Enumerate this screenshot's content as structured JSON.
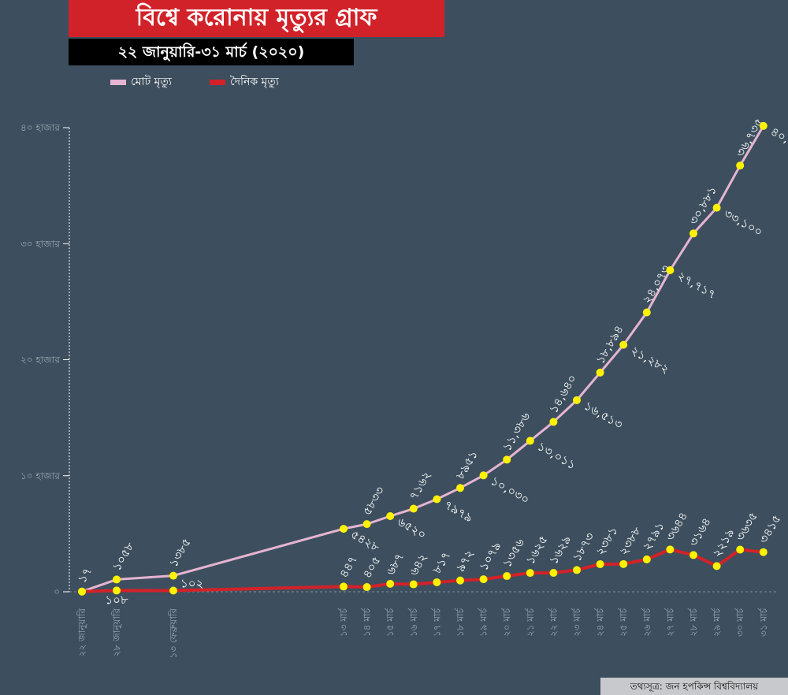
{
  "chart_data": {
    "type": "line",
    "title": "বিশ্বে করোনায় মৃত্যুর গ্রাফ",
    "subtitle": "২২ জানুয়ারি-৩১ মার্চ (২০২০)",
    "x": [
      "২২ জানুয়ারি",
      "২৮ জানুয়ারি",
      "১৩ ফেব্রুয়ারি",
      "১৩ মার্চ",
      "১৪ মার্চ",
      "১৫ মার্চ",
      "১৬ মার্চ",
      "১৭ মার্চ",
      "১৮ মার্চ",
      "১৯ মার্চ",
      "২০ মার্চ",
      "২১ মার্চ",
      "২২ মার্চ",
      "২৩ মার্চ",
      "২৪ মার্চ",
      "২৫ মার্চ",
      "২৬ মার্চ",
      "২৭ মার্চ",
      "২৮ মার্চ",
      "২৯ মার্চ",
      "৩০ মার্চ",
      "৩১ মার্চ"
    ],
    "series": [
      {
        "name": "মোট মৃত্যু",
        "color": "#e6b4d2",
        "values": [
          17,
          1058,
          1385,
          5428,
          5833,
          6520,
          7162,
          7979,
          8951,
          10030,
          11386,
          13011,
          14640,
          16513,
          18894,
          21282,
          24073,
          27717,
          30881,
          33100,
          36735,
          40150
        ],
        "labels": [
          "১৭",
          "১০৫৮",
          "১৩৮৫",
          "৫৪২৮",
          "৫৮৩৩",
          "৬৫২০",
          "৭১৬২",
          "৭৯৭৯",
          "৮৯৫১",
          "১০,০৩০",
          "১১,৩৮৬",
          "১৩,০১১",
          "১৪,৬৪০",
          "১৬,৫১৩",
          "১৮,৮৯৪",
          "২১,২৮২",
          "২৪,০৭৩",
          "২৭,৭১৭",
          "৩০,৮৮১",
          "৩৩,১০০",
          "৩৬,৭৩৫",
          "৪০,১৫০"
        ]
      },
      {
        "name": "দৈনিক মৃত্যু",
        "color": "#d22229",
        "values": [
          17,
          108,
          102,
          447,
          405,
          687,
          642,
          817,
          972,
          1079,
          1356,
          1625,
          1629,
          1873,
          2381,
          2388,
          2791,
          3644,
          3164,
          2219,
          3635,
          3415
        ],
        "labels": [
          "",
          "১০৮",
          "১০২",
          "৪৪৭",
          "৪০৫",
          "৬৮৭",
          "৬৪২",
          "৮১৭",
          "৯৭২",
          "১০৭৯",
          "১৩৫৬",
          "১৬২৫",
          "১৬২৯",
          "১৮৭৩",
          "২৩৮১",
          "২৩৮৮",
          "২৭৯১",
          "৩৬৪৪",
          "৩১৬৪",
          "২২১৯",
          "৩৬৩৫",
          "৩৪১৫"
        ]
      }
    ],
    "yticks": [
      0,
      10000,
      20000,
      30000,
      40000
    ],
    "ytick_labels": [
      "০",
      "১০ হাজার",
      "২০ হাজার",
      "৩০ হাজার",
      "৪০ হাজার"
    ],
    "ylim": [
      0,
      40000
    ],
    "marker_color": "#fff200",
    "legend": "top-left",
    "source": "তথ্যসূত্র: জন হপকিন্স বিশ্ববিদ্যালয়"
  }
}
